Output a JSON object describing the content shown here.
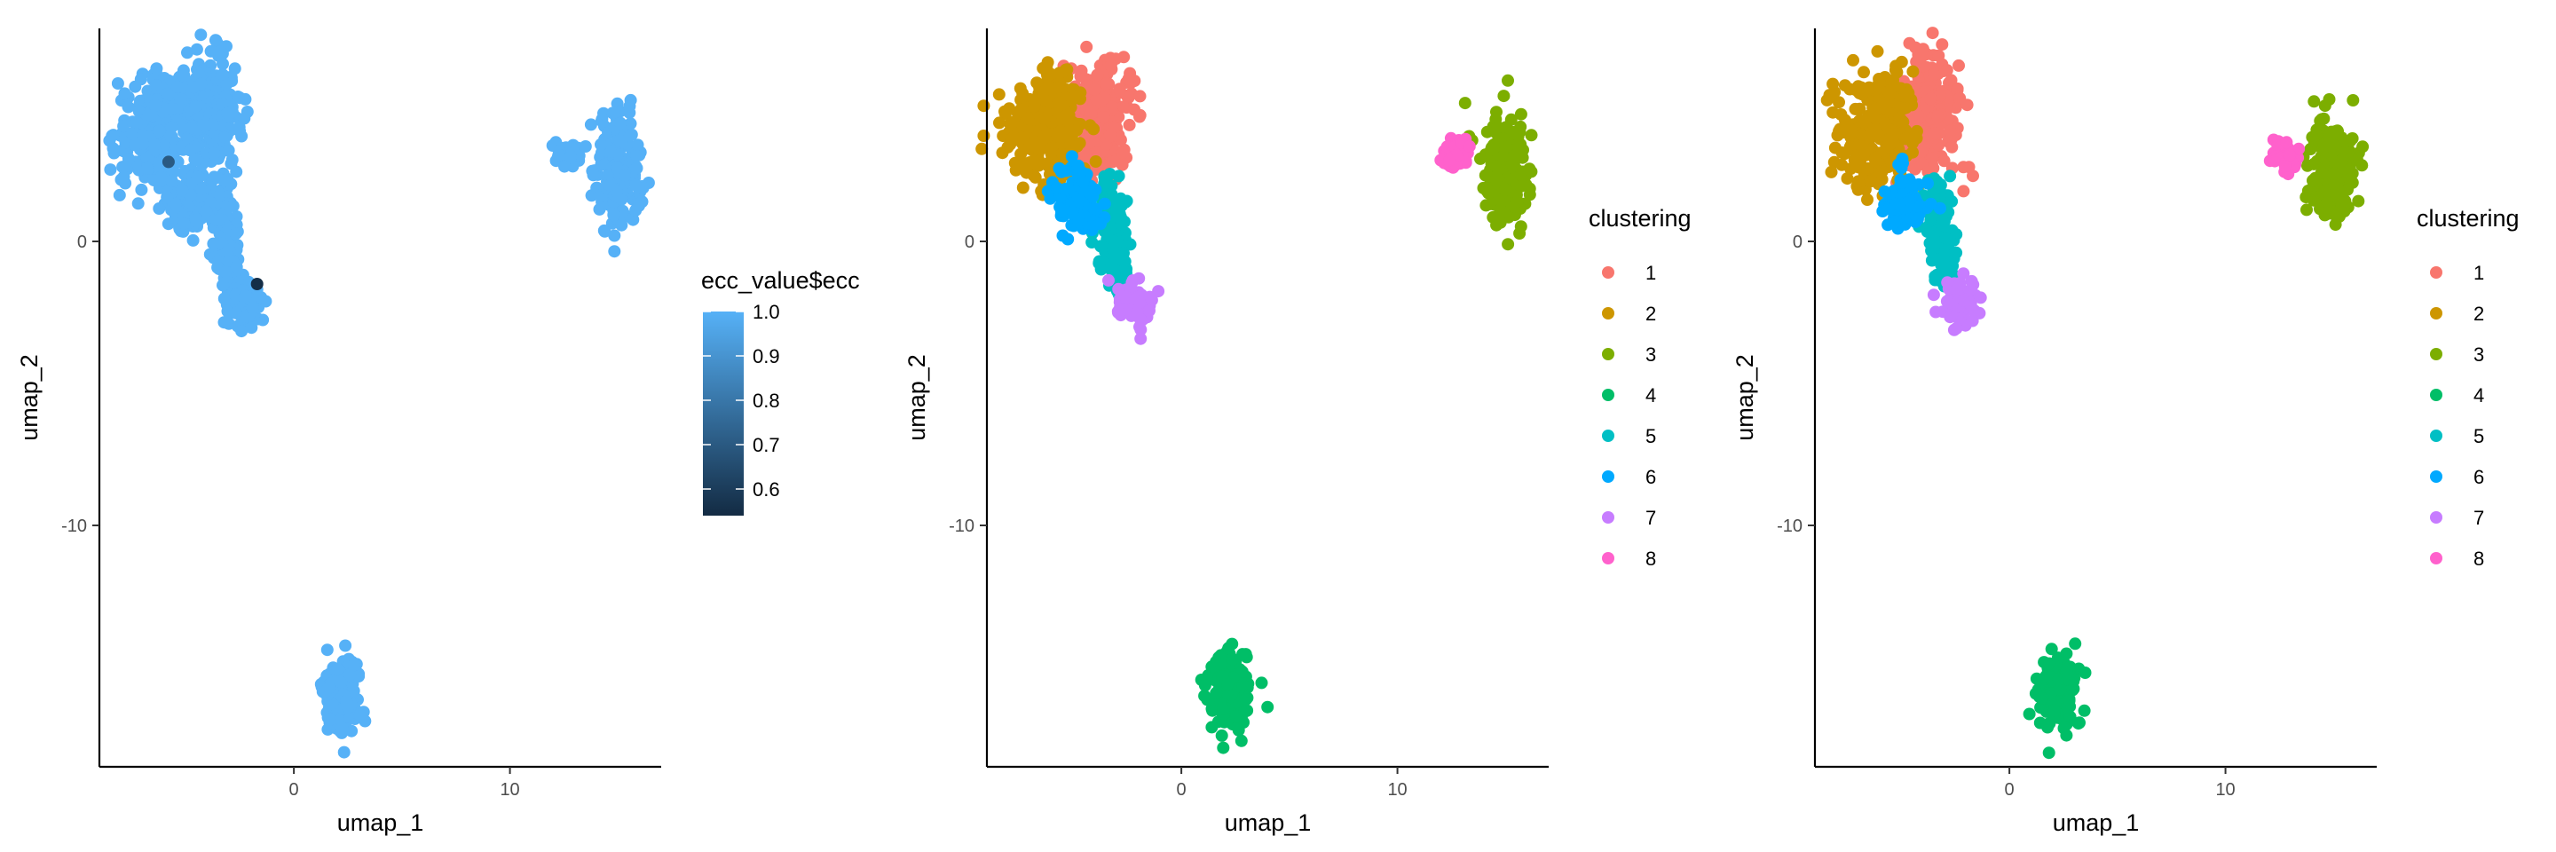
{
  "chart_data": [
    {
      "type": "scatter",
      "color_mode": "continuous",
      "xlabel": "umap_1",
      "ylabel": "umap_2",
      "xlim": [
        -9,
        17
      ],
      "ylim": [
        -18.5,
        7.5
      ],
      "xticks": [
        0,
        10
      ],
      "xtick_labels": [
        "0",
        "10"
      ],
      "yticks": [
        0,
        -10
      ],
      "ytick_labels": [
        "0",
        "-10"
      ],
      "grid": false,
      "legend": {
        "title": "ecc_value$ecc",
        "placement": "right",
        "kind": "colorbar",
        "range": [
          0.54,
          1.0
        ],
        "low_color": "#132B43",
        "high_color": "#56B1F7",
        "ticks": [
          1.0,
          0.9,
          0.8,
          0.7,
          0.6
        ],
        "tick_labels": [
          "1.0",
          "0.9",
          "0.8",
          "0.7",
          "0.6"
        ]
      },
      "points_summary": [
        {
          "region": "upper-left lobe",
          "x_center": -4.6,
          "y_center": 3.8,
          "value": 1.0
        },
        {
          "region": "central arm",
          "x_center": -3.5,
          "y_center": 0.8,
          "value": 1.0
        },
        {
          "region": "lower arm",
          "x_center": -2.6,
          "y_center": -2.0,
          "value": 1.0
        },
        {
          "region": "right group",
          "x_center": 14.8,
          "y_center": 2.5,
          "value": 1.0
        },
        {
          "region": "bottom group",
          "x_center": 2.2,
          "y_center": -15.9,
          "value": 1.0
        }
      ],
      "highlights": [
        {
          "x": -5.8,
          "y": 2.8,
          "value": 0.7
        },
        {
          "x": -1.7,
          "y": -1.5,
          "value": 0.55
        }
      ]
    },
    {
      "type": "scatter",
      "color_mode": "categorical",
      "xlabel": "umap_1",
      "ylabel": "umap_2",
      "xlim": [
        -9,
        17
      ],
      "ylim": [
        -18.5,
        7.5
      ],
      "xticks": [
        0,
        10
      ],
      "xtick_labels": [
        "0",
        "10"
      ],
      "yticks": [
        0,
        -10
      ],
      "ytick_labels": [
        "0",
        "-10"
      ],
      "grid": false,
      "legend": {
        "title": "clustering",
        "placement": "right",
        "kind": "discrete",
        "entries": [
          {
            "label": "1",
            "color": "#F8766D"
          },
          {
            "label": "2",
            "color": "#CD9600"
          },
          {
            "label": "3",
            "color": "#7CAE00"
          },
          {
            "label": "4",
            "color": "#00BE67"
          },
          {
            "label": "5",
            "color": "#00BFC4"
          },
          {
            "label": "6",
            "color": "#00A9FF"
          },
          {
            "label": "7",
            "color": "#C77CFF"
          },
          {
            "label": "8",
            "color": "#FF61CC"
          }
        ]
      },
      "clusters_summary": [
        {
          "cluster": "1",
          "x_center": -3.9,
          "y_center": 4.4
        },
        {
          "cluster": "2",
          "x_center": -6.4,
          "y_center": 3.8
        },
        {
          "cluster": "3",
          "x_center": 15.0,
          "y_center": 2.5
        },
        {
          "cluster": "4",
          "x_center": 2.2,
          "y_center": -15.9
        },
        {
          "cluster": "5",
          "x_center": -3.3,
          "y_center": 0.4
        },
        {
          "cluster": "6",
          "x_center": -4.8,
          "y_center": 1.3
        },
        {
          "cluster": "7",
          "x_center": -2.3,
          "y_center": -2.2
        },
        {
          "cluster": "8",
          "x_center": 12.7,
          "y_center": 3.1
        }
      ]
    },
    {
      "type": "scatter",
      "color_mode": "categorical",
      "xlabel": "umap_1",
      "ylabel": "umap_2",
      "xlim": [
        -9,
        17
      ],
      "ylim": [
        -18.5,
        7.5
      ],
      "xticks": [
        0,
        10
      ],
      "xtick_labels": [
        "0",
        "10"
      ],
      "yticks": [
        0,
        -10
      ],
      "ytick_labels": [
        "0",
        "-10"
      ],
      "grid": false,
      "legend": {
        "title": "clustering",
        "placement": "right",
        "kind": "discrete",
        "entries": [
          {
            "label": "1",
            "color": "#F8766D"
          },
          {
            "label": "2",
            "color": "#CD9600"
          },
          {
            "label": "3",
            "color": "#7CAE00"
          },
          {
            "label": "4",
            "color": "#00BE67"
          },
          {
            "label": "5",
            "color": "#00BFC4"
          },
          {
            "label": "6",
            "color": "#00A9FF"
          },
          {
            "label": "7",
            "color": "#C77CFF"
          },
          {
            "label": "8",
            "color": "#FF61CC"
          }
        ]
      },
      "clusters_summary": [
        {
          "cluster": "1",
          "x_center": -3.9,
          "y_center": 4.4
        },
        {
          "cluster": "2",
          "x_center": -6.4,
          "y_center": 3.8
        },
        {
          "cluster": "3",
          "x_center": 15.0,
          "y_center": 2.5
        },
        {
          "cluster": "4",
          "x_center": 2.2,
          "y_center": -15.9
        },
        {
          "cluster": "5",
          "x_center": -3.3,
          "y_center": 0.4
        },
        {
          "cluster": "6",
          "x_center": -4.8,
          "y_center": 1.3
        },
        {
          "cluster": "7",
          "x_center": -2.3,
          "y_center": -2.2
        },
        {
          "cluster": "8",
          "x_center": 12.7,
          "y_center": 3.1
        }
      ]
    }
  ]
}
